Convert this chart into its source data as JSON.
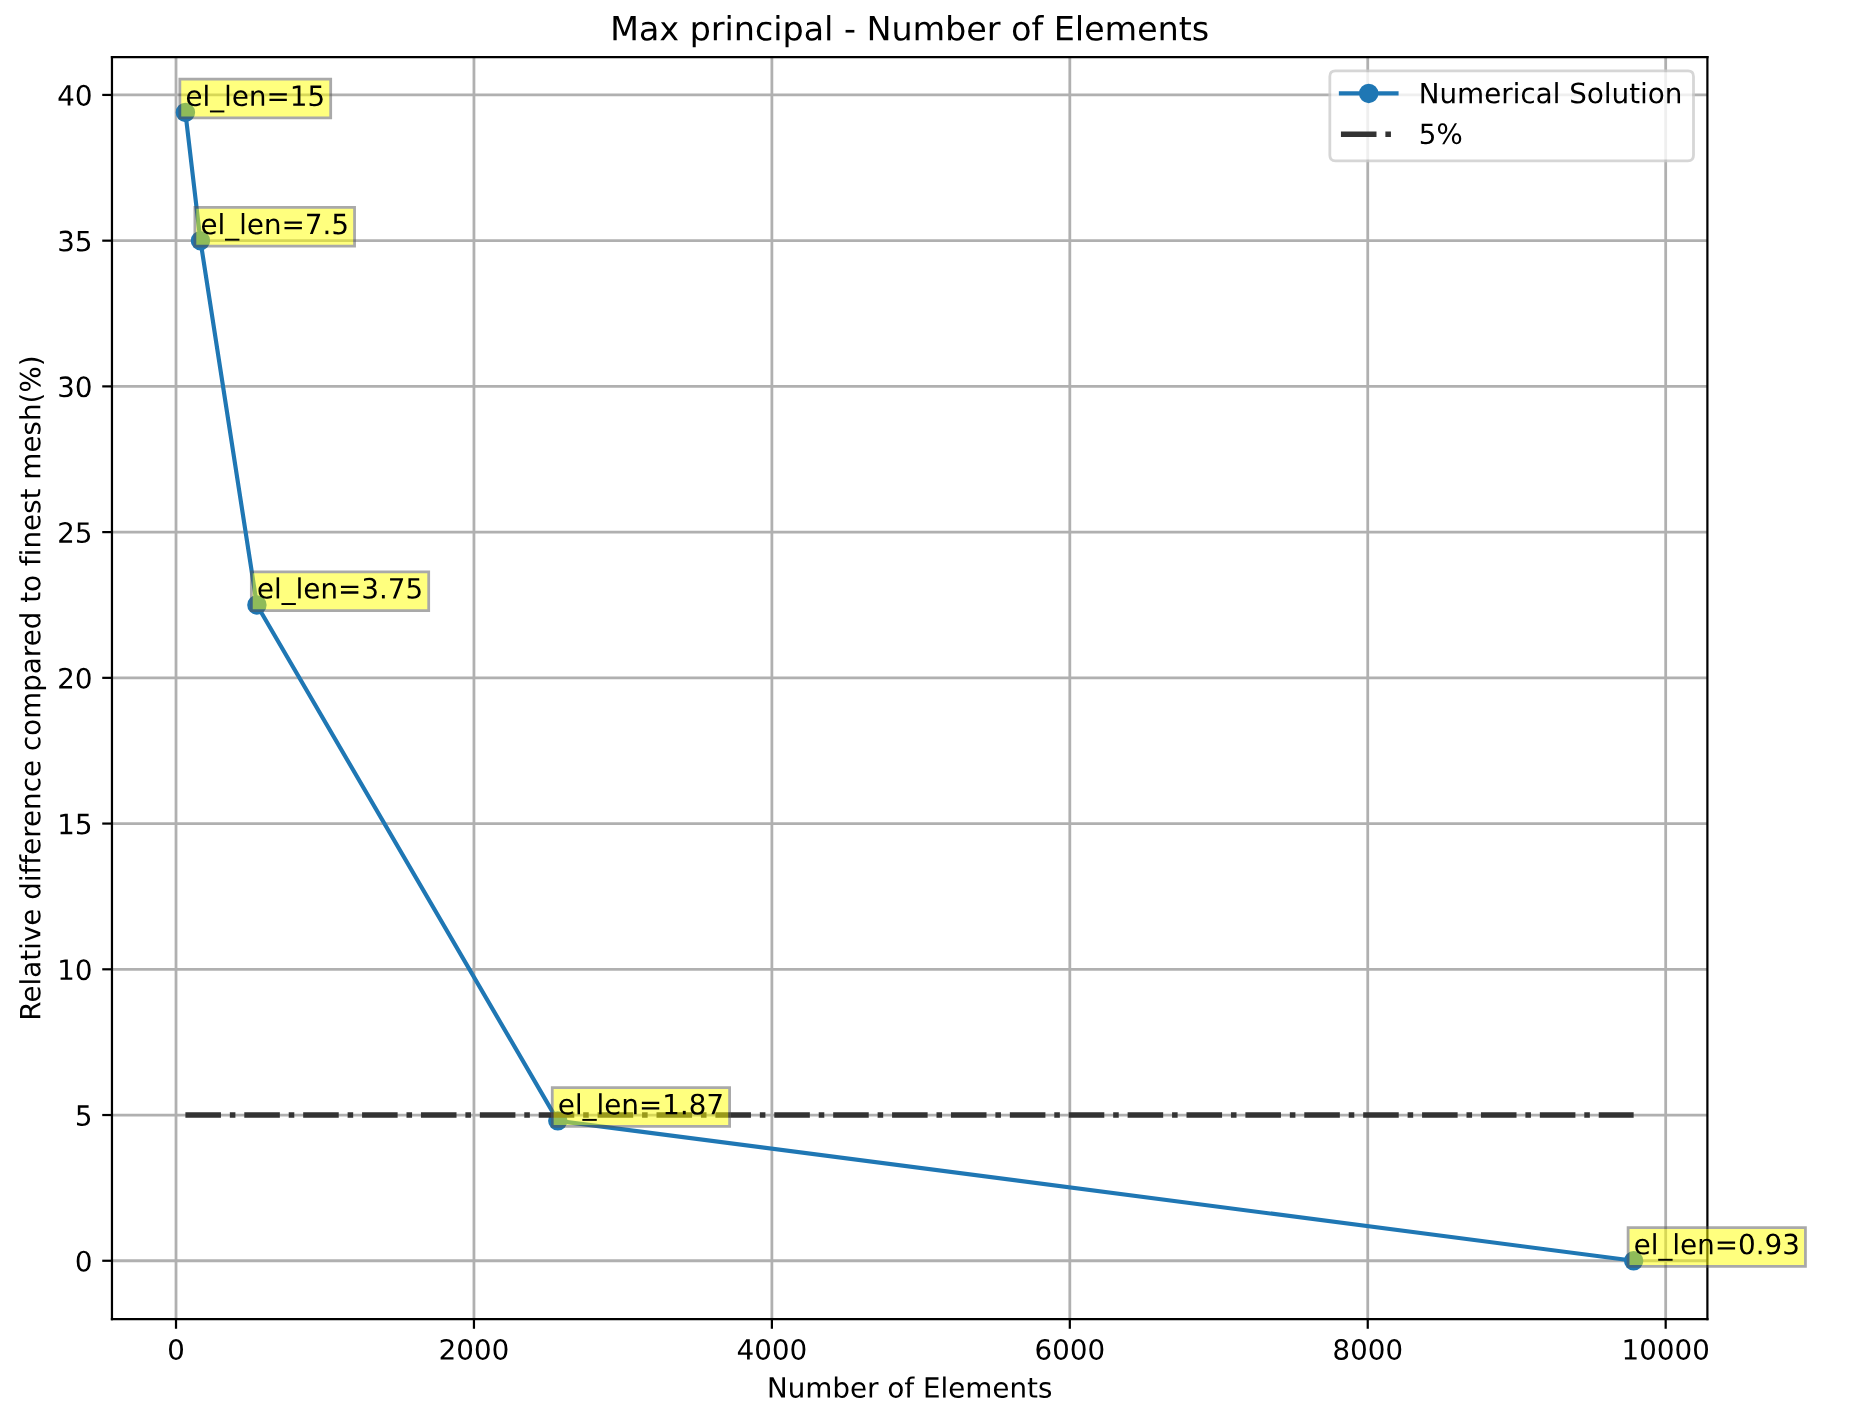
{
  "chart_data": {
    "type": "line",
    "title": "Max principal - Number of Elements",
    "xlabel": "Number of Elements",
    "ylabel": "Relative difference compared to finest mesh(%)",
    "series": [
      {
        "name": "Numerical Solution",
        "color": "#1f77b4",
        "x": [
          63,
          164,
          543,
          2563,
          9785
        ],
        "values": [
          39.4,
          35.0,
          22.5,
          4.8,
          0.0
        ],
        "marker": "circle"
      },
      {
        "name": "5%",
        "color": "#333333",
        "x": [
          63,
          9785
        ],
        "values": [
          5,
          5
        ],
        "line_style": "dashdot"
      }
    ],
    "annotations": [
      {
        "text": "el_len=15",
        "x": 63,
        "y": 39.4
      },
      {
        "text": "el_len=7.5",
        "x": 164,
        "y": 35.0
      },
      {
        "text": "el_len=3.75",
        "x": 543,
        "y": 22.5
      },
      {
        "text": "el_len=1.87",
        "x": 2563,
        "y": 4.8
      },
      {
        "text": "el_len=0.93",
        "x": 9785,
        "y": 0.0
      }
    ],
    "xlim": [
      -430,
      10280
    ],
    "ylim": [
      -2.0,
      41.3
    ],
    "xticks": [
      0,
      2000,
      4000,
      6000,
      8000,
      10000
    ],
    "yticks": [
      0,
      5,
      10,
      15,
      20,
      25,
      30,
      35,
      40
    ],
    "grid": true,
    "legend": "top right"
  }
}
